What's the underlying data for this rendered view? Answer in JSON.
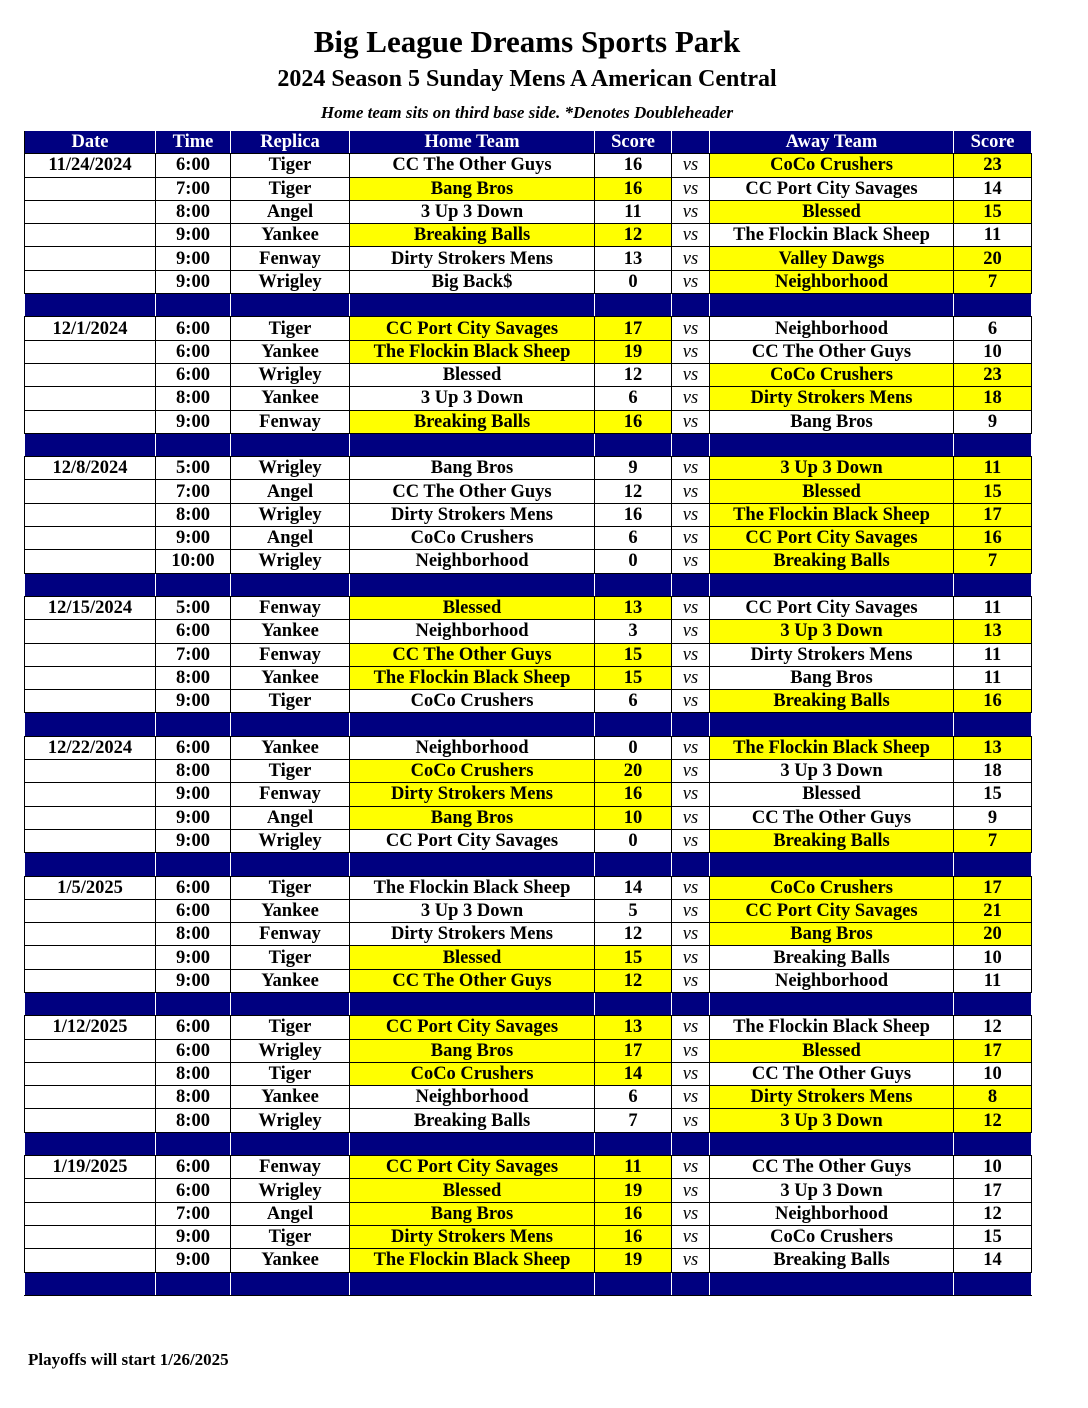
{
  "header": {
    "title": "Big League Dreams Sports Park",
    "subtitle": "2024 Season 5 Sunday Mens A American Central",
    "note": "Home team sits on third base side.  *Denotes Doubleheader"
  },
  "colors": {
    "header_bg": "#000080",
    "winner_highlight": "#ffff00"
  },
  "columns": [
    "Date",
    "Time",
    "Replica",
    "Home Team",
    "Score",
    "",
    "Away Team",
    "Score"
  ],
  "vs_label": "vs",
  "weeks": [
    {
      "date": "11/24/2024",
      "games": [
        [
          "6:00",
          "Tiger",
          "CC The Other Guys",
          "16",
          "CoCo Crushers",
          "23",
          "away"
        ],
        [
          "7:00",
          "Tiger",
          "Bang Bros",
          "16",
          "CC Port City Savages",
          "14",
          "home"
        ],
        [
          "8:00",
          "Angel",
          "3 Up 3 Down",
          "11",
          "Blessed",
          "15",
          "away"
        ],
        [
          "9:00",
          "Yankee",
          "Breaking Balls",
          "12",
          "The Flockin Black Sheep",
          "11",
          "home"
        ],
        [
          "9:00",
          "Fenway",
          "Dirty Strokers Mens",
          "13",
          "Valley Dawgs",
          "20",
          "away"
        ],
        [
          "9:00",
          "Wrigley",
          "Big Back$",
          "0",
          "Neighborhood",
          "7",
          "away"
        ]
      ]
    },
    {
      "date": "12/1/2024",
      "games": [
        [
          "6:00",
          "Tiger",
          "CC Port City Savages",
          "17",
          "Neighborhood",
          "6",
          "home"
        ],
        [
          "6:00",
          "Yankee",
          "The Flockin Black Sheep",
          "19",
          "CC The Other Guys",
          "10",
          "home"
        ],
        [
          "6:00",
          "Wrigley",
          "Blessed",
          "12",
          "CoCo Crushers",
          "23",
          "away"
        ],
        [
          "8:00",
          "Yankee",
          "3 Up 3 Down",
          "6",
          "Dirty Strokers Mens",
          "18",
          "away"
        ],
        [
          "9:00",
          "Fenway",
          "Breaking Balls",
          "16",
          "Bang Bros",
          "9",
          "home"
        ]
      ]
    },
    {
      "date": "12/8/2024",
      "games": [
        [
          "5:00",
          "Wrigley",
          "Bang Bros",
          "9",
          "3 Up 3 Down",
          "11",
          "away"
        ],
        [
          "7:00",
          "Angel",
          "CC The Other Guys",
          "12",
          "Blessed",
          "15",
          "away"
        ],
        [
          "8:00",
          "Wrigley",
          "Dirty Strokers Mens",
          "16",
          "The Flockin Black Sheep",
          "17",
          "away"
        ],
        [
          "9:00",
          "Angel",
          "CoCo Crushers",
          "6",
          "CC Port City Savages",
          "16",
          "away"
        ],
        [
          "10:00",
          "Wrigley",
          "Neighborhood",
          "0",
          "Breaking Balls",
          "7",
          "away"
        ]
      ]
    },
    {
      "date": "12/15/2024",
      "games": [
        [
          "5:00",
          "Fenway",
          "Blessed",
          "13",
          "CC Port City Savages",
          "11",
          "home"
        ],
        [
          "6:00",
          "Yankee",
          "Neighborhood",
          "3",
          "3 Up 3 Down",
          "13",
          "away"
        ],
        [
          "7:00",
          "Fenway",
          "CC The Other Guys",
          "15",
          "Dirty Strokers Mens",
          "11",
          "home"
        ],
        [
          "8:00",
          "Yankee",
          "The Flockin Black Sheep",
          "15",
          "Bang Bros",
          "11",
          "home"
        ],
        [
          "9:00",
          "Tiger",
          "CoCo Crushers",
          "6",
          "Breaking Balls",
          "16",
          "away"
        ]
      ]
    },
    {
      "date": "12/22/2024",
      "games": [
        [
          "6:00",
          "Yankee",
          "Neighborhood",
          "0",
          "The Flockin Black Sheep",
          "13",
          "away"
        ],
        [
          "8:00",
          "Tiger",
          "CoCo Crushers",
          "20",
          "3 Up 3 Down",
          "18",
          "home"
        ],
        [
          "9:00",
          "Fenway",
          "Dirty Strokers Mens",
          "16",
          "Blessed",
          "15",
          "home"
        ],
        [
          "9:00",
          "Angel",
          "Bang Bros",
          "10",
          "CC The Other Guys",
          "9",
          "home"
        ],
        [
          "9:00",
          "Wrigley",
          "CC Port City Savages",
          "0",
          "Breaking Balls",
          "7",
          "away"
        ]
      ]
    },
    {
      "date": "1/5/2025",
      "games": [
        [
          "6:00",
          "Tiger",
          "The Flockin Black Sheep",
          "14",
          "CoCo Crushers",
          "17",
          "away"
        ],
        [
          "6:00",
          "Yankee",
          "3 Up 3 Down",
          "5",
          "CC Port City Savages",
          "21",
          "away"
        ],
        [
          "8:00",
          "Fenway",
          "Dirty Strokers Mens",
          "12",
          "Bang Bros",
          "20",
          "away"
        ],
        [
          "9:00",
          "Tiger",
          "Blessed",
          "15",
          "Breaking Balls",
          "10",
          "home"
        ],
        [
          "9:00",
          "Yankee",
          "CC The Other Guys",
          "12",
          "Neighborhood",
          "11",
          "home"
        ]
      ]
    },
    {
      "date": "1/12/2025",
      "games": [
        [
          "6:00",
          "Tiger",
          "CC Port City Savages",
          "13",
          "The Flockin Black Sheep",
          "12",
          "home"
        ],
        [
          "6:00",
          "Wrigley",
          "Bang Bros",
          "17",
          "Blessed",
          "17",
          "both"
        ],
        [
          "8:00",
          "Tiger",
          "CoCo Crushers",
          "14",
          "CC The Other Guys",
          "10",
          "home"
        ],
        [
          "8:00",
          "Yankee",
          "Neighborhood",
          "6",
          "Dirty Strokers Mens",
          "8",
          "away"
        ],
        [
          "8:00",
          "Wrigley",
          "Breaking Balls",
          "7",
          "3 Up 3 Down",
          "12",
          "away"
        ]
      ]
    },
    {
      "date": "1/19/2025",
      "games": [
        [
          "6:00",
          "Fenway",
          "CC Port City Savages",
          "11",
          "CC The Other Guys",
          "10",
          "home"
        ],
        [
          "6:00",
          "Wrigley",
          "Blessed",
          "19",
          "3 Up 3 Down",
          "17",
          "home"
        ],
        [
          "7:00",
          "Angel",
          "Bang Bros",
          "16",
          "Neighborhood",
          "12",
          "home"
        ],
        [
          "9:00",
          "Tiger",
          "Dirty Strokers Mens",
          "16",
          "CoCo Crushers",
          "15",
          "home"
        ],
        [
          "9:00",
          "Yankee",
          "The Flockin Black Sheep",
          "19",
          "Breaking Balls",
          "14",
          "home"
        ]
      ]
    }
  ],
  "footer": "Playoffs will start 1/26/2025"
}
